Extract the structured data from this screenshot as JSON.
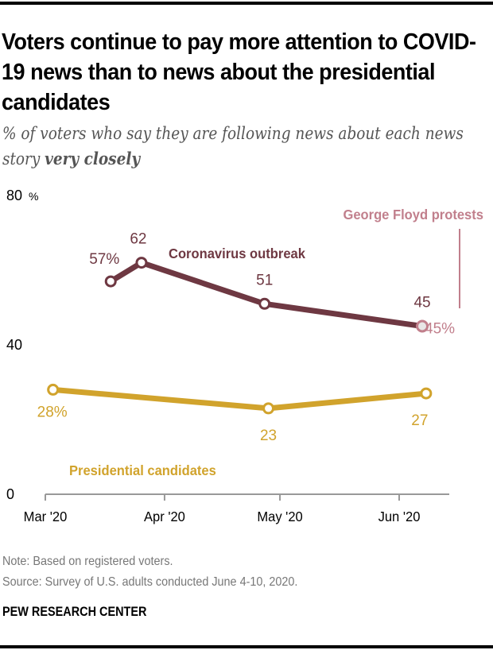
{
  "header": {
    "title": "Voters continue to pay more attention to COVID-19 news than to news about the presidential candidates",
    "subtitle_prefix": "% of voters who say they are following news about each news story ",
    "subtitle_emphasis": "very closely"
  },
  "footer": {
    "note": "Note: Based on registered voters.",
    "source": "Source: Survey of U.S. adults conducted June 4-10, 2020.",
    "brand": "PEW RESEARCH CENTER"
  },
  "colors": {
    "coronavirus": "#6e3842",
    "candidates": "#d1a32c",
    "floyd": "#c17f8c",
    "axis": "#999999",
    "text_dark": "#000000"
  },
  "chart_data": {
    "type": "line",
    "title": "Voters continue to pay more attention to COVID-19 news than to news about the presidential candidates",
    "subtitle": "% of voters who say they are following news about each news story very closely",
    "xlabel": "",
    "ylabel": "",
    "ylim": [
      0,
      80
    ],
    "y_ticks": [
      {
        "value": 0,
        "label": "0"
      },
      {
        "value": 40,
        "label": "40"
      },
      {
        "value": 80,
        "label": "80",
        "suffix": "%"
      }
    ],
    "x_ticks": [
      {
        "label": "Mar '20",
        "date": "2020-03-01"
      },
      {
        "label": "Apr '20",
        "date": "2020-04-01"
      },
      {
        "label": "May '20",
        "date": "2020-05-01"
      },
      {
        "label": "Jun '20",
        "date": "2020-06-01"
      }
    ],
    "x_range": [
      "2020-03-01",
      "2020-06-20"
    ],
    "grid": false,
    "series": [
      {
        "name": "Coronavirus outbreak",
        "color_key": "coronavirus",
        "points": [
          {
            "date": "2020-03-18",
            "value": 57,
            "label": "57%"
          },
          {
            "date": "2020-03-26",
            "value": 62,
            "label": "62"
          },
          {
            "date": "2020-04-27",
            "value": 51,
            "label": "51"
          },
          {
            "date": "2020-06-07",
            "value": 45,
            "label": "45"
          }
        ]
      },
      {
        "name": "Presidential candidates",
        "color_key": "candidates",
        "points": [
          {
            "date": "2020-03-03",
            "value": 28,
            "label": "28%"
          },
          {
            "date": "2020-04-28",
            "value": 23,
            "label": "23"
          },
          {
            "date": "2020-06-08",
            "value": 27,
            "label": "27"
          }
        ]
      },
      {
        "name": "George Floyd protests",
        "color_key": "floyd",
        "points": [
          {
            "date": "2020-06-07",
            "value": 45,
            "label": "45%"
          }
        ]
      }
    ]
  }
}
